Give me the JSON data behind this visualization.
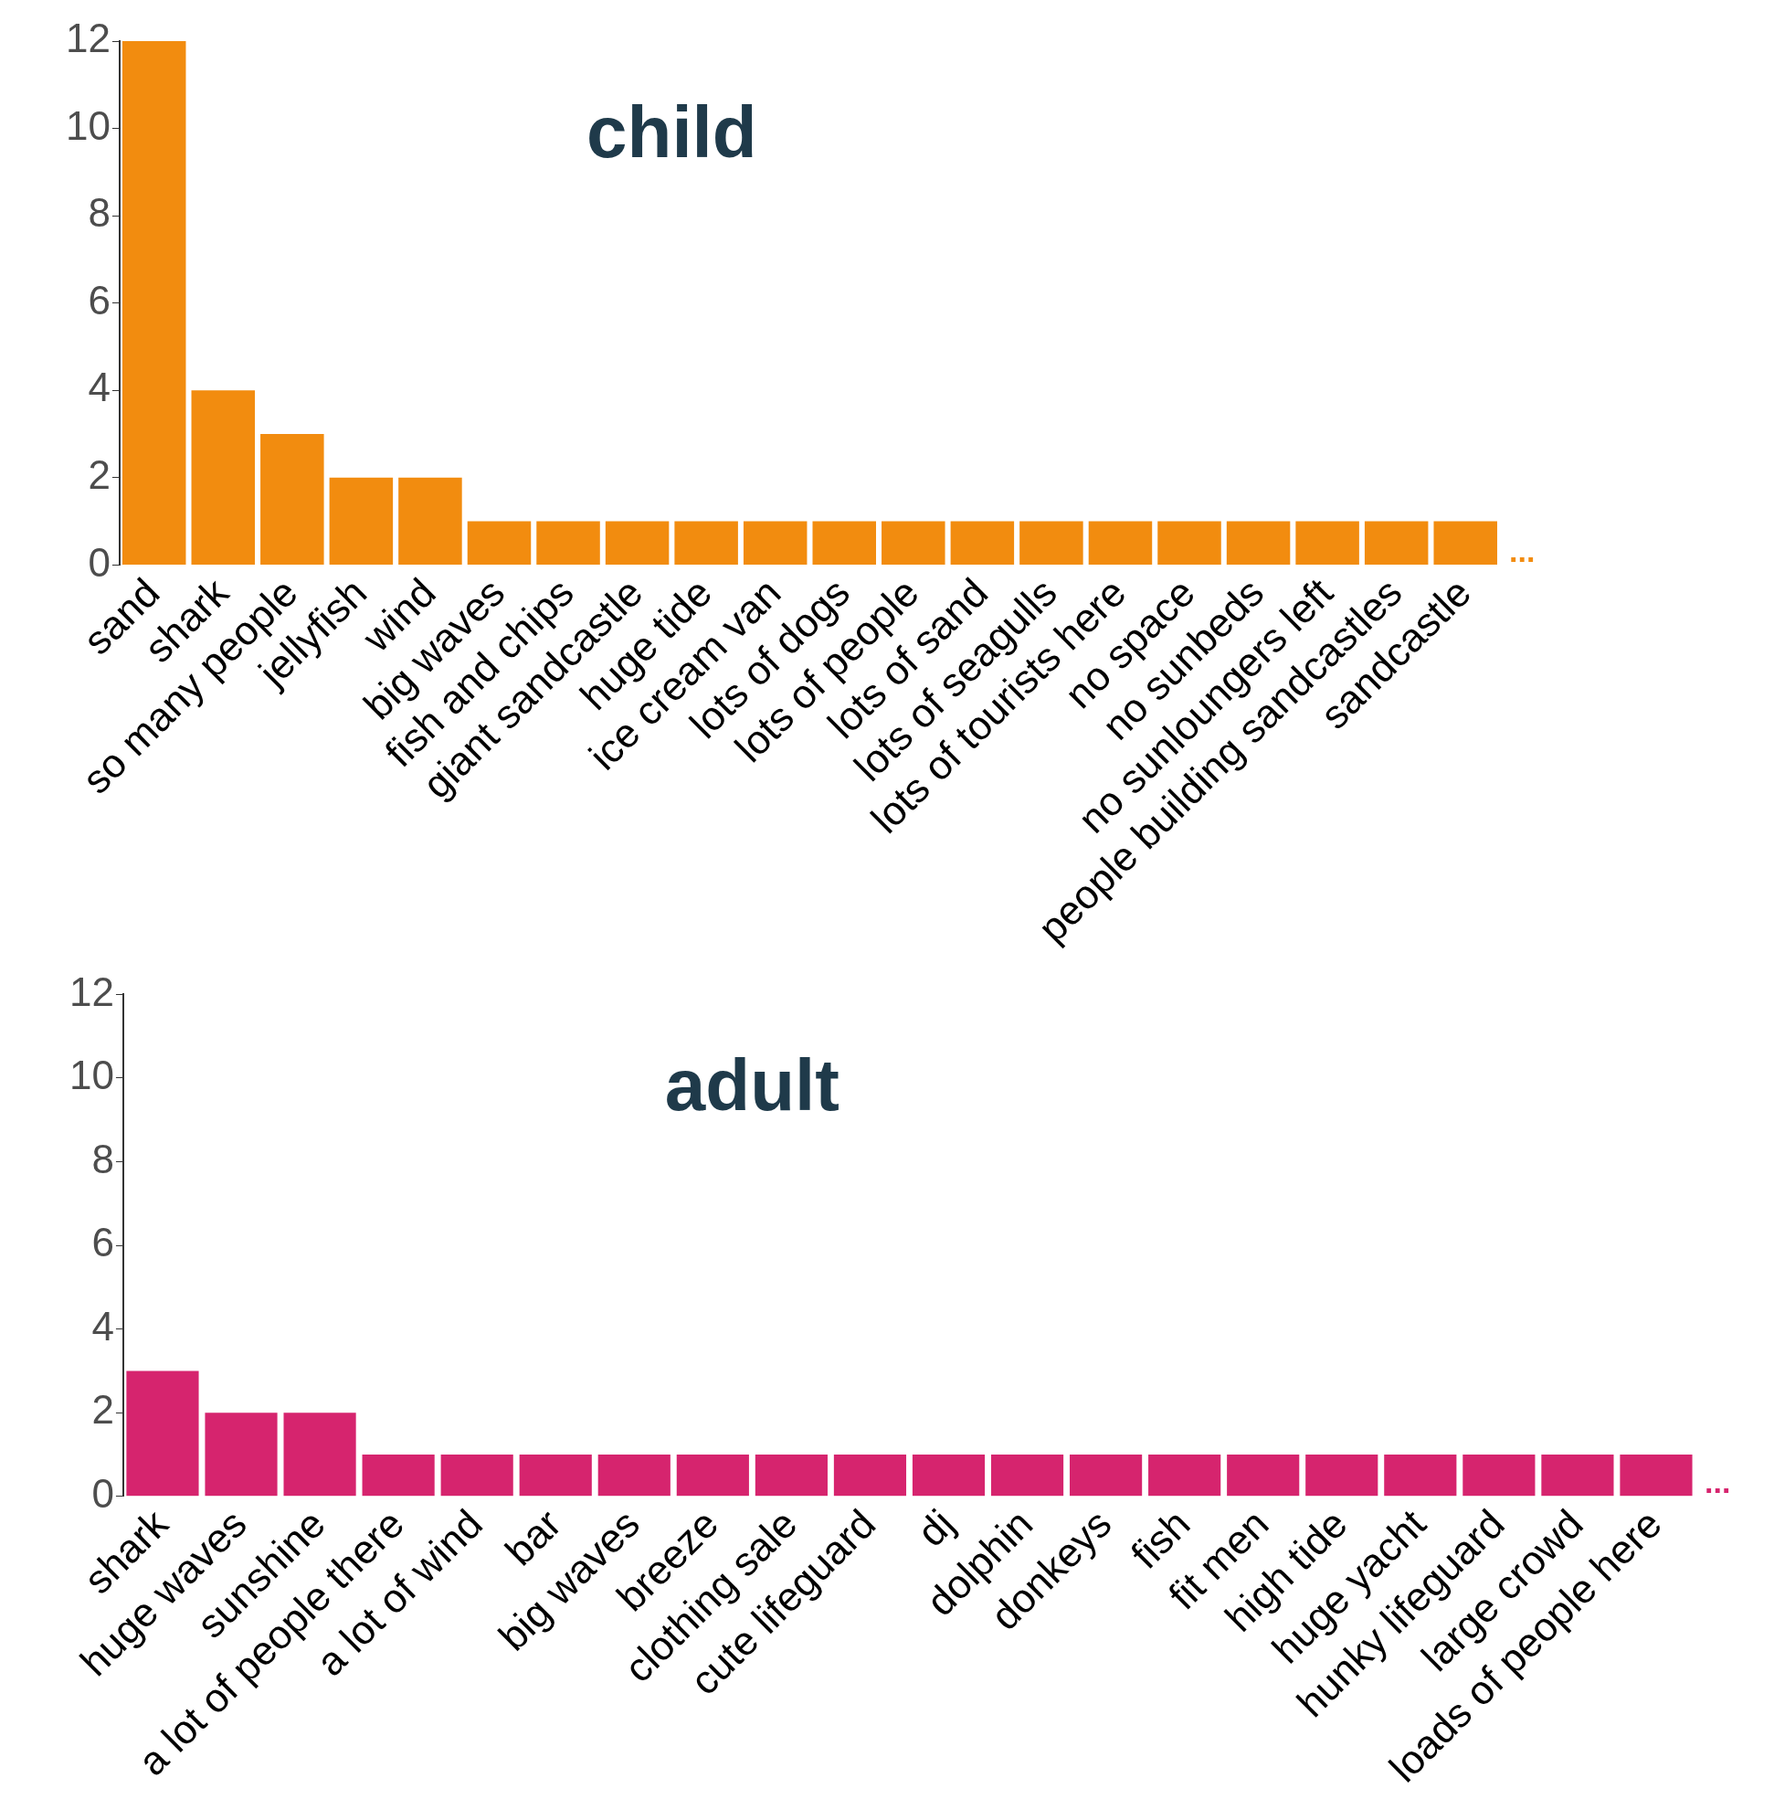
{
  "chart_data": [
    {
      "type": "bar",
      "title": "child",
      "categories": [
        "sand",
        "shark",
        "so many people",
        "jellyfish",
        "wind",
        "big waves",
        "fish and chips",
        "giant sandcastle",
        "huge tide",
        "ice cream van",
        "lots of dogs",
        "lots of people",
        "lots of sand",
        "lots of seagulls",
        "lots of tourists here",
        "no space",
        "no sunbeds",
        "no sunloungers left",
        "people building sandcastles",
        "sandcastle"
      ],
      "values": [
        12,
        4,
        3,
        2,
        2,
        1,
        1,
        1,
        1,
        1,
        1,
        1,
        1,
        1,
        1,
        1,
        1,
        1,
        1,
        1
      ],
      "color": "#f28c0f",
      "ylim": [
        0,
        12
      ],
      "yticks": [
        0,
        2,
        4,
        6,
        8,
        10,
        12
      ],
      "legend": false,
      "annotations": [
        "..."
      ]
    },
    {
      "type": "bar",
      "title": "adult",
      "categories": [
        "shark",
        "huge waves",
        "sunshine",
        "a lot of people there",
        "a lot of wind",
        "bar",
        "big waves",
        "breeze",
        "clothing sale",
        "cute lifeguard",
        "dj",
        "dolphin",
        "donkeys",
        "fish",
        "fit men",
        "high tide",
        "huge yacht",
        "hunky lifeguard",
        "large crowd",
        "loads of people here"
      ],
      "values": [
        3,
        2,
        2,
        1,
        1,
        1,
        1,
        1,
        1,
        1,
        1,
        1,
        1,
        1,
        1,
        1,
        1,
        1,
        1,
        1
      ],
      "color": "#d6246e",
      "ylim": [
        0,
        12
      ],
      "yticks": [
        0,
        2,
        4,
        6,
        8,
        10,
        12
      ],
      "legend": false,
      "annotations": [
        "..."
      ]
    }
  ]
}
